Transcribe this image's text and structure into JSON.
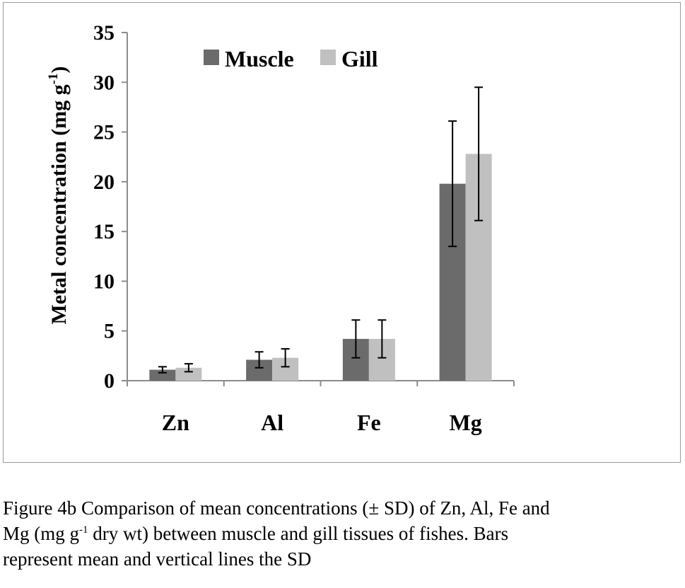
{
  "chart_data": {
    "type": "bar",
    "categories": [
      "Zn",
      "Al",
      "Fe",
      "Mg"
    ],
    "series": [
      {
        "name": "Muscle",
        "color": "#6b6b6b",
        "values": [
          1.1,
          2.1,
          4.2,
          19.8
        ],
        "sd": [
          0.3,
          0.8,
          1.9,
          6.3
        ]
      },
      {
        "name": "Gill",
        "color": "#c0c0c0",
        "values": [
          1.3,
          2.3,
          4.2,
          22.8
        ],
        "sd": [
          0.4,
          0.9,
          1.9,
          6.7
        ]
      }
    ],
    "ylabel_main": "Metal concentration (mg g",
    "ylabel_sup": "-1",
    "ylabel_end": ")",
    "ylim": [
      0,
      35
    ],
    "yticks": [
      "0",
      "5",
      "10",
      "15",
      "20",
      "25",
      "30",
      "35"
    ],
    "grid": false,
    "legend_position": "top-center"
  },
  "caption": {
    "line1": "Figure 4b Comparison of mean concentrations (± SD) of Zn, Al, Fe and",
    "line2_a": "Mg (mg g",
    "line2_sup": "-1",
    "line2_b": " dry wt) between muscle and gill tissues of fishes. Bars",
    "line3": "represent mean and vertical lines the SD"
  }
}
